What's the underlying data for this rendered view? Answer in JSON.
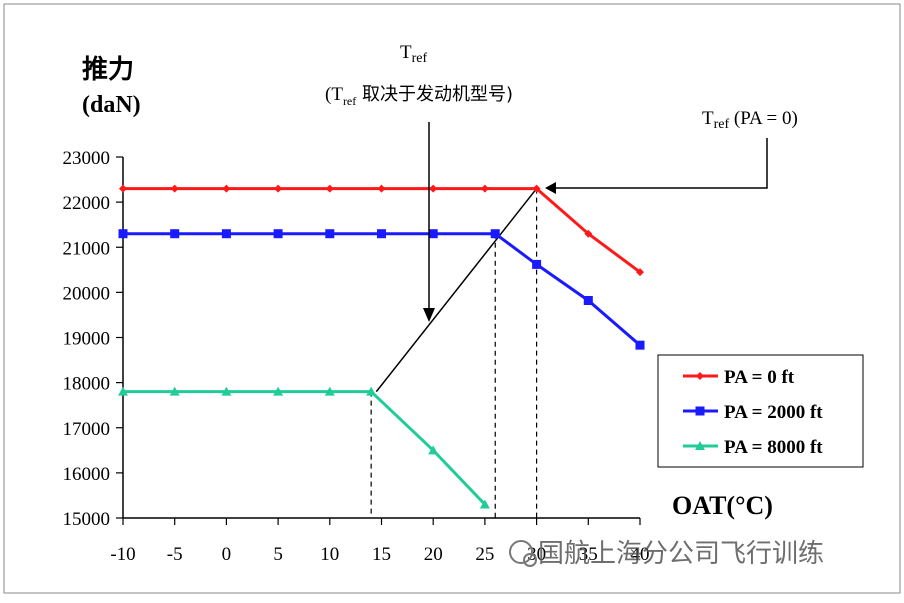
{
  "chart_data": {
    "type": "line",
    "ylabel_line1": "推力",
    "ylabel_line2": "(daN)",
    "xlabel": "OAT(°C)",
    "x_ticks": [
      -10,
      -5,
      0,
      5,
      10,
      15,
      20,
      25,
      30,
      35,
      40
    ],
    "x_tick_labels": [
      "-10",
      "-5",
      "0",
      "5",
      "10",
      "15",
      "20",
      "25",
      "30",
      "35",
      "40"
    ],
    "y_ticks": [
      15000,
      16000,
      17000,
      18000,
      19000,
      20000,
      21000,
      22000,
      23000
    ],
    "y_tick_labels": [
      "15000",
      "16000",
      "17000",
      "18000",
      "19000",
      "20000",
      "21000",
      "22000",
      "23000"
    ],
    "xlim": [
      -10,
      40
    ],
    "ylim": [
      15000,
      23000
    ],
    "series": [
      {
        "name": "PA = 0 ft",
        "color": "#ff1a1a",
        "marker": "diamond",
        "x": [
          -10,
          -5,
          0,
          5,
          10,
          15,
          20,
          25,
          30,
          35,
          40
        ],
        "y": [
          22300,
          22300,
          22300,
          22300,
          22300,
          22300,
          22300,
          22300,
          22300,
          21300,
          20450
        ]
      },
      {
        "name": "PA = 2000 ft",
        "color": "#1a1aff",
        "marker": "square",
        "x": [
          -10,
          -5,
          0,
          5,
          10,
          15,
          20,
          26,
          30,
          35,
          40
        ],
        "y": [
          21300,
          21300,
          21300,
          21300,
          21300,
          21300,
          21300,
          21300,
          20620,
          19820,
          18830
        ]
      },
      {
        "name": "PA = 8000 ft",
        "color": "#22cc99",
        "marker": "triangle",
        "x": [
          -10,
          -5,
          0,
          5,
          10,
          14,
          20,
          25
        ],
        "y": [
          17800,
          17800,
          17800,
          17800,
          17800,
          17800,
          16500,
          15300
        ]
      }
    ],
    "tref_line": {
      "x": [
        14.5,
        30
      ],
      "y": [
        17800,
        22300
      ],
      "color": "#000000"
    },
    "dashed_verticals": [
      {
        "x": 14,
        "y_top": 17800
      },
      {
        "x": 26,
        "y_top": 21300
      },
      {
        "x": 30,
        "y_top": 22300
      }
    ],
    "annotations": {
      "tref_main": "T",
      "tref_main_sub": "ref",
      "tref_engine_open": "(T",
      "tref_engine_sub": "ref",
      "tref_engine_rest": " 取决于发动机型号)",
      "tref_pa0": "T",
      "tref_pa0_sub": "ref",
      "tref_pa0_rest": " (PA = 0)"
    },
    "legend": {
      "position": "right",
      "entries": [
        "PA = 0 ft",
        "PA = 2000 ft",
        "PA = 8000 ft"
      ]
    },
    "grid": false
  },
  "watermark": "国航上海分公司飞行训练"
}
